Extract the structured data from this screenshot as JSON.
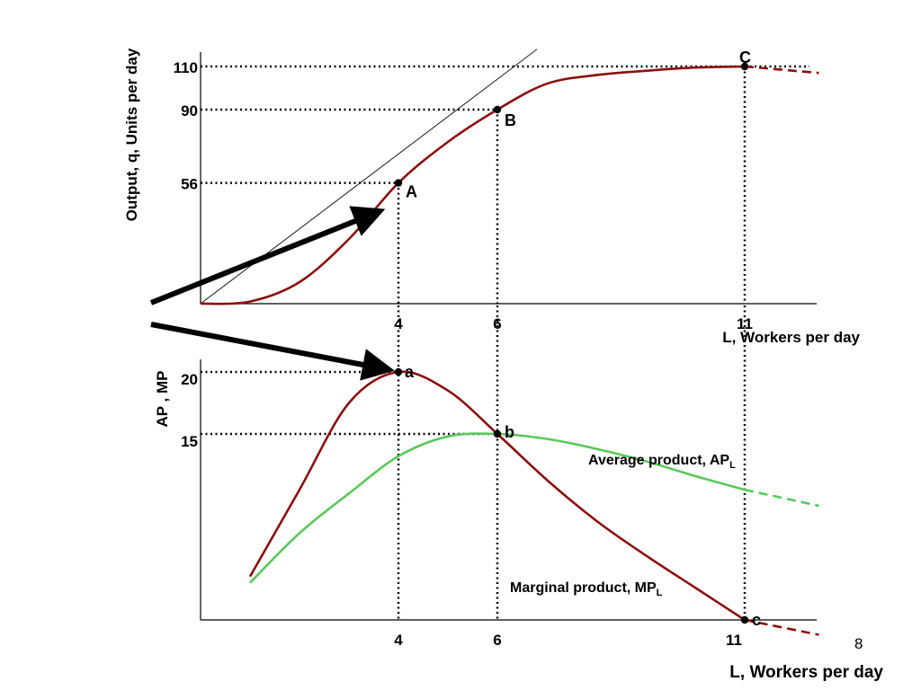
{
  "page_number": "8",
  "chart_data": [
    {
      "type": "line",
      "ylabel": "Output, q, Units per day",
      "xlabel": "L, Workers per day",
      "x_ticks": [
        "4",
        "6",
        "11"
      ],
      "y_ticks": [
        "110",
        "90",
        "56"
      ],
      "xlim": [
        0,
        12.5
      ],
      "ylim": [
        0,
        115
      ],
      "series": [
        {
          "values": [
            [
              0,
              0
            ],
            [
              1,
              1
            ],
            [
              2,
              10
            ],
            [
              3,
              30
            ],
            [
              4,
              56
            ],
            [
              5,
              75
            ],
            [
              6,
              90
            ],
            [
              7,
              102
            ],
            [
              8,
              106
            ],
            [
              9,
              108
            ],
            [
              10,
              109.5
            ],
            [
              11,
              110
            ]
          ]
        }
      ],
      "dashed_extension": [
        [
          11,
          110
        ],
        [
          12.5,
          107
        ]
      ],
      "points": [
        {
          "label": "A",
          "x": 4,
          "y": 56
        },
        {
          "label": "B",
          "x": 6,
          "y": 90
        },
        {
          "label": "C",
          "x": 11,
          "y": 110
        }
      ],
      "tangent_line": [
        [
          0,
          0
        ],
        [
          6.8,
          118
        ]
      ]
    },
    {
      "type": "line",
      "ylabel": "AP , MP",
      "xlabel": "L, Workers per day",
      "x_ticks": [
        "4",
        "6",
        "11"
      ],
      "y_ticks": [
        "20",
        "15"
      ],
      "xlim": [
        0,
        12.5
      ],
      "ylim": [
        0,
        21.5
      ],
      "series": [
        {
          "name": "Average product, AP",
          "name_sub": "L",
          "color": "#5bc85b",
          "values": [
            [
              1,
              3
            ],
            [
              2,
              7
            ],
            [
              3,
              10.2
            ],
            [
              4,
              13.2
            ],
            [
              5,
              14.8
            ],
            [
              6,
              15
            ],
            [
              7,
              14.6
            ],
            [
              8,
              13.8
            ],
            [
              9,
              12.8
            ],
            [
              10,
              11.6
            ],
            [
              11,
              10.5
            ]
          ]
        },
        {
          "name": "Marginal product, MP",
          "name_sub": "L",
          "color": "#8b0f0f",
          "values": [
            [
              1,
              3.5
            ],
            [
              2,
              10.5
            ],
            [
              3,
              17.5
            ],
            [
              4,
              20
            ],
            [
              5,
              18.5
            ],
            [
              6,
              15
            ],
            [
              7,
              11.3
            ],
            [
              8,
              8
            ],
            [
              9,
              5.2
            ],
            [
              10,
              2.6
            ],
            [
              11,
              0
            ]
          ]
        }
      ],
      "dashed_extensions": [
        {
          "color": "#5bc85b",
          "values": [
            [
              11,
              10.5
            ],
            [
              12.5,
              9.2
            ]
          ]
        },
        {
          "color": "#8b0f0f",
          "values": [
            [
              11,
              0
            ],
            [
              12.5,
              -1.2
            ]
          ]
        }
      ],
      "points": [
        {
          "label": "a",
          "x": 4,
          "y": 20
        },
        {
          "label": "b",
          "x": 6,
          "y": 15
        },
        {
          "label": "c",
          "x": 11,
          "y": 0
        }
      ]
    }
  ]
}
